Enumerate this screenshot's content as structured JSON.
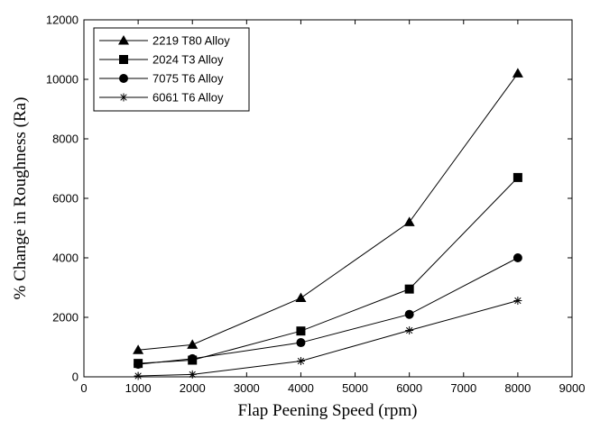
{
  "chart_data": {
    "type": "line",
    "title": "",
    "xlabel": "Flap Peening Speed (rpm)",
    "ylabel": "% Change in Roughness (Ra)",
    "xlim": [
      0,
      9000
    ],
    "ylim": [
      0,
      12000
    ],
    "xticks": [
      0,
      1000,
      2000,
      3000,
      4000,
      5000,
      6000,
      7000,
      8000,
      9000
    ],
    "yticks": [
      0,
      2000,
      4000,
      6000,
      8000,
      10000,
      12000
    ],
    "grid": false,
    "legend_position": "top-left",
    "series": [
      {
        "name": "2219 T80 Alloy",
        "marker": "triangle",
        "x": [
          1000,
          2000,
          4000,
          6000,
          8000
        ],
        "y": [
          900,
          1080,
          2650,
          5200,
          10200
        ]
      },
      {
        "name": "2024 T3 Alloy",
        "marker": "square",
        "x": [
          1000,
          2000,
          4000,
          6000,
          8000
        ],
        "y": [
          450,
          560,
          1540,
          2950,
          6700
        ]
      },
      {
        "name": "7075 T6 Alloy",
        "marker": "circle",
        "x": [
          1000,
          2000,
          4000,
          6000,
          8000
        ],
        "y": [
          420,
          610,
          1150,
          2100,
          4000
        ]
      },
      {
        "name": "6061 T6 Alloy",
        "marker": "star",
        "x": [
          1000,
          2000,
          4000,
          6000,
          8000
        ],
        "y": [
          30,
          80,
          530,
          1560,
          2560
        ]
      }
    ]
  }
}
